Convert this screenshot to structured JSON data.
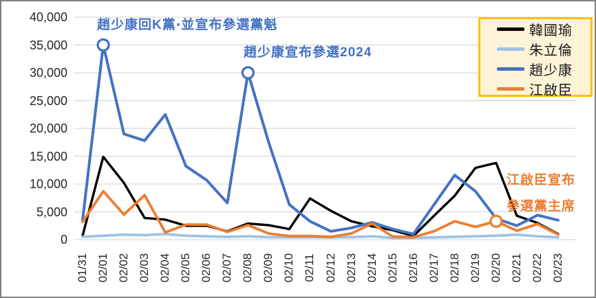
{
  "chart_data": {
    "type": "line",
    "title": "",
    "xlabel": "",
    "ylabel": "",
    "ylim": [
      0,
      40000
    ],
    "grid": true,
    "legend_position": "top-right",
    "categories": [
      "01/31",
      "02/01",
      "02/02",
      "02/03",
      "02/04",
      "02/05",
      "02/06",
      "02/07",
      "02/08",
      "02/09",
      "02/10",
      "02/11",
      "02/12",
      "02/13",
      "02/14",
      "02/15",
      "02/16",
      "02/17",
      "02/18",
      "02/19",
      "02/20",
      "02/21",
      "02/22",
      "02/23"
    ],
    "y_ticks": [
      "0",
      "5,000",
      "10,000",
      "15,000",
      "20,000",
      "25,000",
      "30,000",
      "35,000",
      "40,000"
    ],
    "series": [
      {
        "name": "韓國瑜",
        "color": "#000000",
        "values": [
          700,
          14900,
          10200,
          3900,
          3600,
          2500,
          2500,
          1500,
          2900,
          2600,
          1900,
          7400,
          5200,
          3300,
          2400,
          1700,
          650,
          4300,
          7900,
          12900,
          13800,
          4300,
          3000,
          1000
        ]
      },
      {
        "name": "朱立倫",
        "color": "#9DC3E6",
        "values": [
          500,
          700,
          900,
          800,
          1000,
          700,
          600,
          500,
          600,
          450,
          400,
          400,
          400,
          450,
          600,
          300,
          300,
          400,
          500,
          600,
          700,
          900,
          600,
          400
        ]
      },
      {
        "name": "趙少康",
        "color": "#4472C4",
        "values": [
          3500,
          35000,
          19000,
          17800,
          22500,
          13200,
          10700,
          6600,
          30000,
          17500,
          6300,
          3300,
          1500,
          2100,
          3100,
          1900,
          1000,
          6300,
          11600,
          8700,
          3800,
          2500,
          4400,
          3500
        ]
      },
      {
        "name": "江啟臣",
        "color": "#ED7D31",
        "values": [
          3200,
          8700,
          4500,
          8000,
          1300,
          2700,
          2700,
          1400,
          2600,
          1100,
          650,
          650,
          500,
          1100,
          2900,
          550,
          450,
          1500,
          3300,
          2300,
          3300,
          1600,
          2800,
          900
        ]
      }
    ],
    "markers": [
      {
        "series": "趙少康",
        "category": "02/01",
        "value": 35000
      },
      {
        "series": "趙少康",
        "category": "02/08",
        "value": 30000
      },
      {
        "series": "江啟臣",
        "category": "02/20",
        "value": 3300
      }
    ],
    "annotations": [
      {
        "text": "趙少康回K黨‧並宣布參選黨魁",
        "color": "#4472C4"
      },
      {
        "text": "趙少康宣布參選2024",
        "color": "#4472C4"
      },
      {
        "lines": [
          "江啟臣宣布",
          "參選黨主席"
        ],
        "color": "#ED7D31"
      }
    ],
    "colors": {
      "gridline": "#D9D9D9",
      "legend_border": "#FFC000",
      "legend_background": "#FDF3D7",
      "axis_text": "#262626"
    }
  }
}
